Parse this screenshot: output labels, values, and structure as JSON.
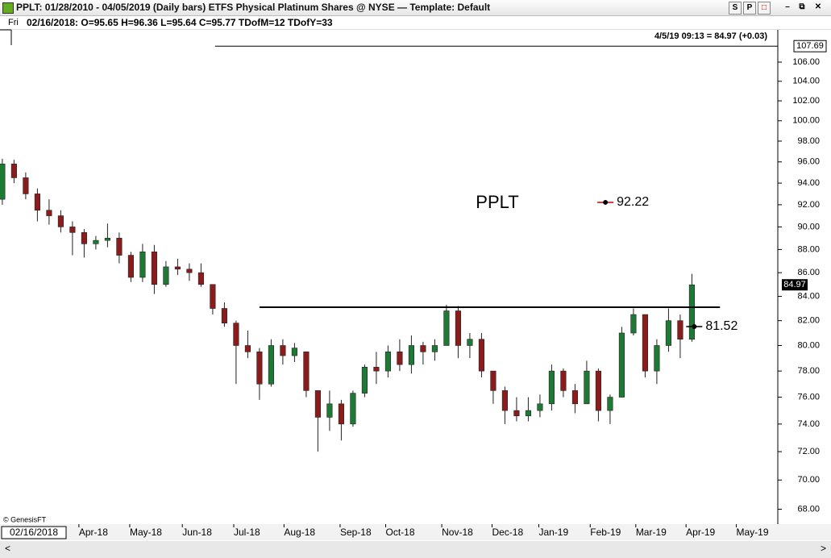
{
  "header": {
    "title": "PPLT:  01/28/2010 - 04/05/2019  (Daily bars)   ETFS Physical Platinum Shares @ NYSE  —  Template: Default",
    "buttons": [
      "S",
      "P"
    ],
    "day": "Fri",
    "info": "02/16/2018:  O=95.65  H=96.36  L=95.64  C=95.77  TDofM=12  TDofY=33"
  },
  "chart_data": {
    "type": "candlestick",
    "quote": "4/5/19 09:13 = 84.97 (+0.03)",
    "note": "PPLT",
    "credit": "© GenesisFT",
    "cursor_label": "02/16/2018",
    "log_scale": true,
    "up_color": "#1d7a34",
    "down_color": "#8c1c1c",
    "open": [
      92.5,
      95.8,
      94.5,
      93,
      91.5,
      91,
      90,
      89.5,
      88.5,
      88.8,
      89,
      87.5,
      85.6,
      87.8,
      85,
      86.5,
      86.3,
      86,
      85,
      83,
      81.8,
      80,
      79.5,
      77,
      80,
      79.2,
      79.5,
      76.5,
      74.5,
      75.5,
      74,
      76.3,
      78.3,
      78,
      79.5,
      78.5,
      80,
      79.5,
      80,
      82.8,
      80,
      80.5,
      78,
      76.5,
      75,
      74.6,
      75,
      75.5,
      78,
      76.5,
      75.5,
      78,
      75,
      76,
      81,
      82.5,
      78,
      80,
      82,
      80.5
    ],
    "high": [
      96.3,
      96.2,
      95,
      93.5,
      92.5,
      91.5,
      90.5,
      89.8,
      89.2,
      90.3,
      89.5,
      87.8,
      88.5,
      88.4,
      87,
      87.2,
      86.8,
      86.8,
      85,
      83.5,
      82,
      81.2,
      79.8,
      80.5,
      80.5,
      80.2,
      79.5,
      76.5,
      76.5,
      75.8,
      76.5,
      78.5,
      79.5,
      80,
      80.5,
      80.8,
      80.3,
      80.5,
      83.3,
      83.2,
      81,
      81,
      78,
      76.8,
      76,
      76,
      76.2,
      78.5,
      78.2,
      77,
      78.8,
      78.2,
      76.2,
      81.5,
      83,
      82.5,
      80.5,
      83,
      82.5,
      85.9
    ],
    "low": [
      92,
      94,
      92.5,
      90.5,
      90.2,
      89.5,
      87.5,
      87.3,
      88,
      88.2,
      86.8,
      85.2,
      85.2,
      84.2,
      84.8,
      85.8,
      85.3,
      84.8,
      82.5,
      81.5,
      77,
      79,
      75.8,
      76.8,
      78.5,
      78.7,
      76,
      72,
      73.5,
      72.8,
      73.8,
      76,
      77,
      77.5,
      78,
      77.8,
      78.5,
      78.8,
      80,
      79,
      79,
      77.5,
      75.5,
      74,
      74.2,
      74.2,
      74.5,
      75,
      76,
      74.8,
      75.5,
      74.2,
      74,
      76,
      80.8,
      77.5,
      77,
      79.5,
      79,
      80.3
    ],
    "close": [
      95.8,
      94.5,
      93,
      91.5,
      91,
      90,
      89.5,
      88.5,
      88.8,
      89,
      87.5,
      85.6,
      87.8,
      85,
      86.5,
      86.3,
      86,
      85,
      83,
      81.8,
      80,
      79.5,
      77,
      80,
      79.2,
      79.8,
      76.5,
      74.5,
      75.5,
      74,
      76.3,
      78.3,
      78,
      79.5,
      78.5,
      80,
      79.5,
      80,
      82.8,
      80,
      80.5,
      78,
      76.5,
      75,
      74.6,
      75,
      75.5,
      78,
      76.5,
      75.5,
      78,
      75,
      76,
      81,
      82.5,
      78,
      80,
      82,
      80.5,
      84.97
    ],
    "last_label": "84.97",
    "xlim": [
      -0.2,
      66.35
    ],
    "xticks": [
      {
        "value": 6.55,
        "label": "Apr-18"
      },
      {
        "value": 10.9,
        "label": "May-18"
      },
      {
        "value": 15.4,
        "label": "Jun-18"
      },
      {
        "value": 19.8,
        "label": "Jul-18"
      },
      {
        "value": 24.1,
        "label": "Aug-18"
      },
      {
        "value": 28.9,
        "label": "Sep-18"
      },
      {
        "value": 32.8,
        "label": "Oct-18"
      },
      {
        "value": 37.6,
        "label": "Nov-18"
      },
      {
        "value": 41.9,
        "label": "Dec-18"
      },
      {
        "value": 45.9,
        "label": "Jan-19"
      },
      {
        "value": 50.3,
        "label": "Feb-19"
      },
      {
        "value": 54.2,
        "label": "Mar-19"
      },
      {
        "value": 58.5,
        "label": "Apr-19"
      },
      {
        "value": 62.8,
        "label": "May-19"
      }
    ],
    "ylim": [
      67,
      108.75
    ],
    "yticks": [
      {
        "value": 68,
        "label": "68.00"
      },
      {
        "value": 70,
        "label": "70.00"
      },
      {
        "value": 72,
        "label": "72.00"
      },
      {
        "value": 74,
        "label": "74.00"
      },
      {
        "value": 76,
        "label": "76.00"
      },
      {
        "value": 78,
        "label": "78.00"
      },
      {
        "value": 80,
        "label": "80.00"
      },
      {
        "value": 82,
        "label": "82.00"
      },
      {
        "value": 84,
        "label": "84.00"
      },
      {
        "value": 86,
        "label": "86.00"
      },
      {
        "value": 88,
        "label": "88.00"
      },
      {
        "value": 90,
        "label": "90.00"
      },
      {
        "value": 92,
        "label": "92.00"
      },
      {
        "value": 94,
        "label": "94.00"
      },
      {
        "value": 96,
        "label": "96.00"
      },
      {
        "value": 98,
        "label": "98.00"
      },
      {
        "value": 100,
        "label": "100.00"
      },
      {
        "value": 102,
        "label": "102.00"
      },
      {
        "value": 104,
        "label": "104.00"
      },
      {
        "value": 106,
        "label": "106.00"
      }
    ],
    "upper_line": {
      "value": 107.69,
      "x": [
        18.2,
        66.35
      ]
    },
    "hline": {
      "value": 83.1,
      "x": [
        22,
        61.4
      ]
    },
    "markers": [
      {
        "value": 92.22,
        "x": 51.6,
        "color": "#cc0000"
      },
      {
        "value": 81.52,
        "x": 59.2,
        "color": "#000000"
      }
    ]
  }
}
